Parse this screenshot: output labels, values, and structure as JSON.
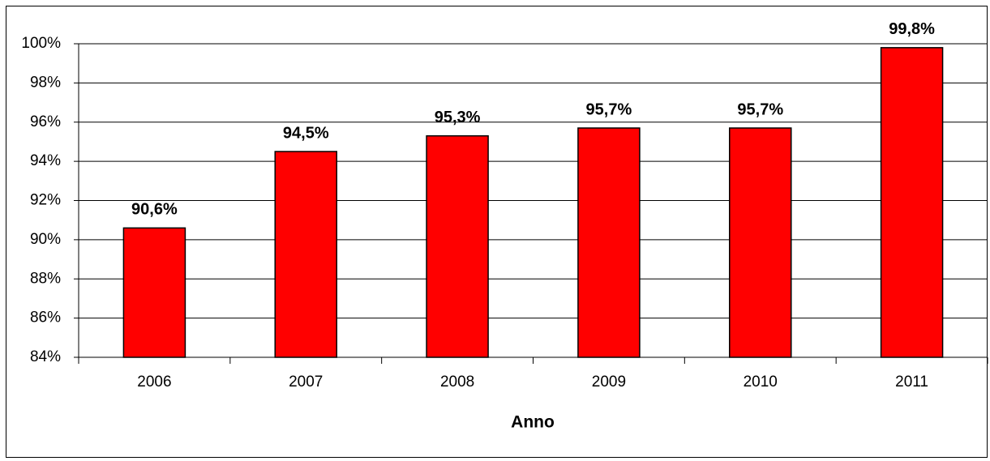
{
  "chart_data": {
    "type": "bar",
    "x_label": "Anno",
    "categories": [
      "2006",
      "2007",
      "2008",
      "2009",
      "2010",
      "2011"
    ],
    "values": [
      90.6,
      94.5,
      95.3,
      95.7,
      95.7,
      99.8
    ],
    "value_labels": [
      "90,6%",
      "94,5%",
      "95,3%",
      "95,7%",
      "95,7%",
      "99,8%"
    ],
    "color": "#ff0000",
    "ylim": [
      84,
      100
    ],
    "yticks": [
      {
        "value": 84,
        "label": "84%"
      },
      {
        "value": 86,
        "label": "86%"
      },
      {
        "value": 88,
        "label": "88%"
      },
      {
        "value": 90,
        "label": "90%"
      },
      {
        "value": 92,
        "label": "92%"
      },
      {
        "value": 94,
        "label": "94%"
      },
      {
        "value": 96,
        "label": "96%"
      },
      {
        "value": 98,
        "label": "98%"
      },
      {
        "value": 100,
        "label": "100%"
      }
    ],
    "grid": true
  }
}
